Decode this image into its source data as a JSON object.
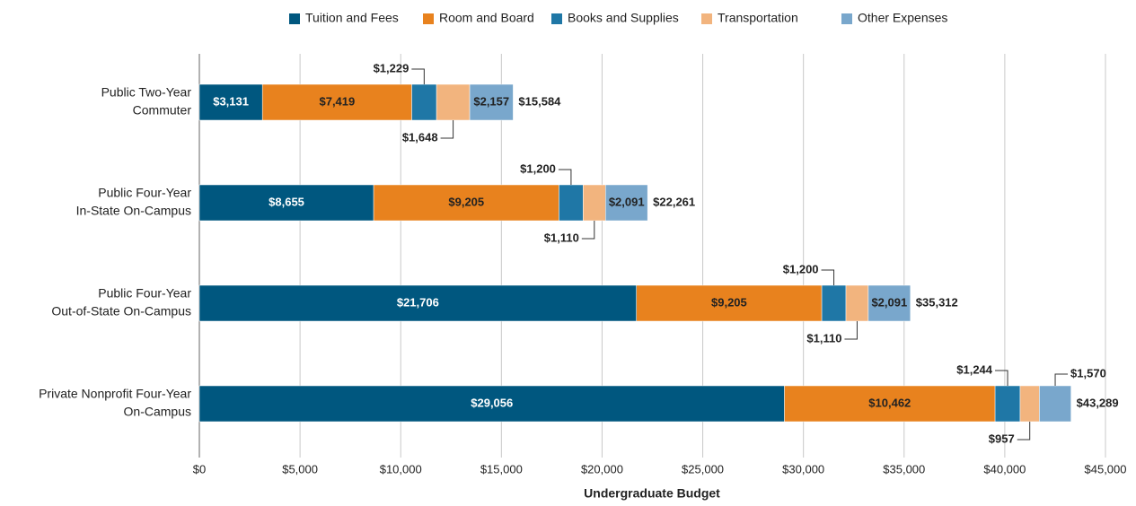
{
  "chart_data": {
    "type": "stacked_bar_horizontal",
    "x_label": "Undergraduate Budget",
    "categories": [
      [
        "Public Two-Year",
        "Commuter"
      ],
      [
        "Public Four-Year",
        "In-State On-Campus"
      ],
      [
        "Public Four-Year",
        "Out-of-State On-Campus"
      ],
      [
        "Private Nonprofit Four-Year",
        "On-Campus"
      ]
    ],
    "series": [
      {
        "name": "Tuition and Fees",
        "color": "#00577f",
        "values": [
          3131,
          8655,
          21706,
          29056
        ],
        "value_labels": [
          "$3,131",
          "$8,655",
          "$21,706",
          "$29,056"
        ]
      },
      {
        "name": "Room and Board",
        "color": "#e8821e",
        "values": [
          7419,
          9205,
          9205,
          10462
        ],
        "value_labels": [
          "$7,419",
          "$9,205",
          "$9,205",
          "$10,462"
        ]
      },
      {
        "name": "Books and Supplies",
        "color": "#1f77a6",
        "values": [
          1229,
          1200,
          1200,
          1244
        ],
        "value_labels": [
          "$1,229",
          "$1,200",
          "$1,200",
          "$1,244"
        ]
      },
      {
        "name": "Transportation",
        "color": "#f2b47e",
        "values": [
          1648,
          1110,
          1110,
          957
        ],
        "value_labels": [
          "$1,648",
          "$1,110",
          "$1,110",
          "$957"
        ]
      },
      {
        "name": "Other Expenses",
        "color": "#79a7cc",
        "values": [
          2157,
          2091,
          2091,
          1570
        ],
        "value_labels": [
          "$2,157",
          "$2,091",
          "$2,091",
          "$1,570"
        ]
      }
    ],
    "totals": [
      15584,
      22261,
      35312,
      43289
    ],
    "total_labels": [
      "$15,584",
      "$22,261",
      "$35,312",
      "$43,289"
    ],
    "xlim": [
      0,
      45000
    ],
    "xticks": [
      {
        "value": 0,
        "label": "$0"
      },
      {
        "value": 5000,
        "label": "$5,000"
      },
      {
        "value": 10000,
        "label": "$10,000"
      },
      {
        "value": 15000,
        "label": "$15,000"
      },
      {
        "value": 20000,
        "label": "$20,000"
      },
      {
        "value": 25000,
        "label": "$25,000"
      },
      {
        "value": 30000,
        "label": "$30,000"
      },
      {
        "value": 35000,
        "label": "$35,000"
      },
      {
        "value": 40000,
        "label": "$40,000"
      },
      {
        "value": 45000,
        "label": "$45,000"
      }
    ],
    "grid": true,
    "legend": "top"
  }
}
